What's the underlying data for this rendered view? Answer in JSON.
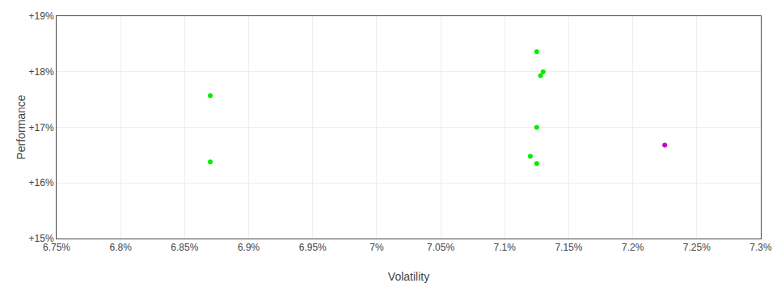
{
  "chart_data": {
    "type": "scatter",
    "x_label": "Volatility",
    "y_label": "Performance",
    "xlim": [
      0.0675,
      0.073
    ],
    "ylim": [
      0.15,
      0.19
    ],
    "xticks": [
      {
        "value": 0.0675,
        "label": "6.75%"
      },
      {
        "value": 0.068,
        "label": "6.8%"
      },
      {
        "value": 0.0685,
        "label": "6.85%"
      },
      {
        "value": 0.069,
        "label": "6.9%"
      },
      {
        "value": 0.0695,
        "label": "6.95%"
      },
      {
        "value": 0.07,
        "label": "7%"
      },
      {
        "value": 0.0705,
        "label": "7.05%"
      },
      {
        "value": 0.071,
        "label": "7.1%"
      },
      {
        "value": 0.0715,
        "label": "7.15%"
      },
      {
        "value": 0.072,
        "label": "7.2%"
      },
      {
        "value": 0.0725,
        "label": "7.25%"
      },
      {
        "value": 0.073,
        "label": "7.3%"
      }
    ],
    "yticks": [
      {
        "value": 0.15,
        "label": "+15%"
      },
      {
        "value": 0.16,
        "label": "+16%"
      },
      {
        "value": 0.17,
        "label": "+17%"
      },
      {
        "value": 0.18,
        "label": "+18%"
      },
      {
        "value": 0.19,
        "label": "+19%"
      }
    ],
    "grid": true,
    "series": [
      {
        "color": "#00ee00",
        "x": [
          0.0687,
          0.0687,
          0.07125,
          0.0713,
          0.07128,
          0.07125,
          0.07125,
          0.0712
        ],
        "values": [
          0.1757,
          0.1638,
          0.1836,
          0.18,
          0.1793,
          0.17,
          0.1635,
          0.1648
        ]
      },
      {
        "color": "#cc00cc",
        "x": [
          0.07225
        ],
        "values": [
          0.1668
        ]
      }
    ]
  }
}
